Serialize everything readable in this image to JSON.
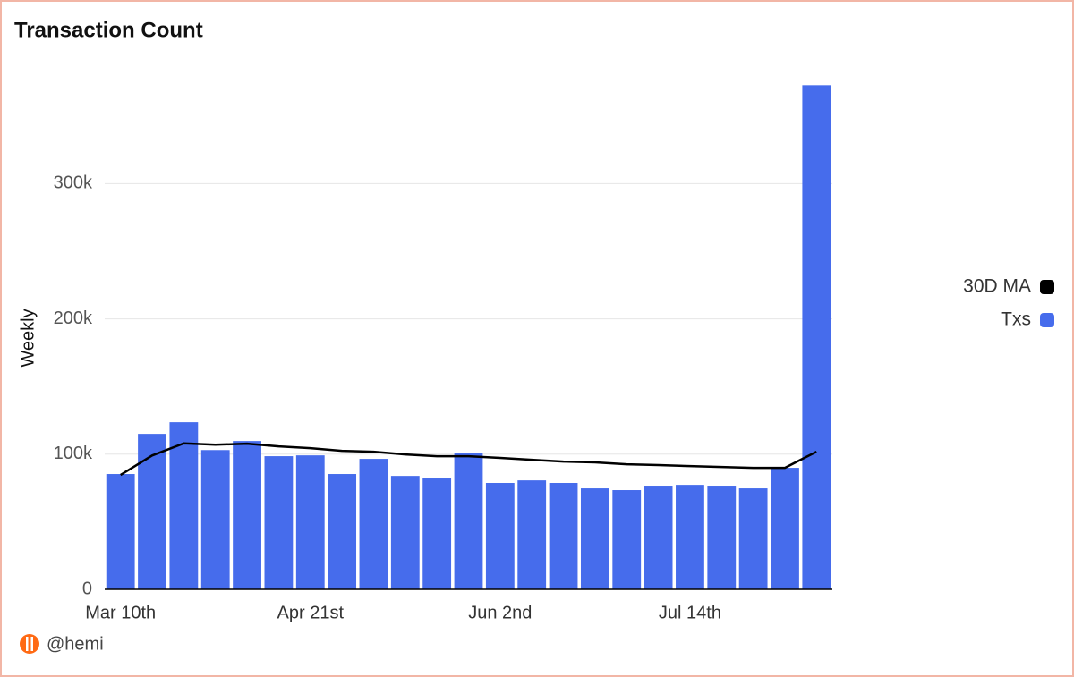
{
  "chart_data": {
    "type": "bar",
    "title": "Transaction Count",
    "y_label": "Weekly",
    "categories": [
      "Mar 10th",
      null,
      null,
      null,
      null,
      null,
      "Apr 21st",
      null,
      null,
      null,
      null,
      null,
      "Jun 2nd",
      null,
      null,
      null,
      null,
      null,
      "Jul 14th",
      null,
      null,
      null,
      null
    ],
    "series": [
      {
        "name": "30D MA",
        "type": "line",
        "color": "#000000",
        "values": [
          84600,
          99000,
          108000,
          107000,
          107700,
          105700,
          104400,
          102400,
          101800,
          99800,
          98500,
          98500,
          97200,
          95800,
          94500,
          93900,
          92500,
          91900,
          91200,
          90500,
          89900,
          89900,
          101800
        ]
      },
      {
        "name": "Txs",
        "type": "bar",
        "color": "#466cec",
        "values": [
          85300,
          115000,
          123600,
          103000,
          109700,
          98500,
          99100,
          85300,
          96500,
          83900,
          82000,
          101000,
          78700,
          80600,
          78700,
          74700,
          73400,
          76700,
          77300,
          76700,
          74700,
          89900,
          372800
        ]
      }
    ],
    "ylim": [
      0,
      375000
    ],
    "yticks": [
      0,
      {
        "value": 100000,
        "label": "100k"
      },
      {
        "value": 200000,
        "label": "200k"
      },
      {
        "value": 300000,
        "label": "300k"
      }
    ],
    "grid": true,
    "legend": "right"
  },
  "footer": {
    "handle": "@hemi"
  }
}
